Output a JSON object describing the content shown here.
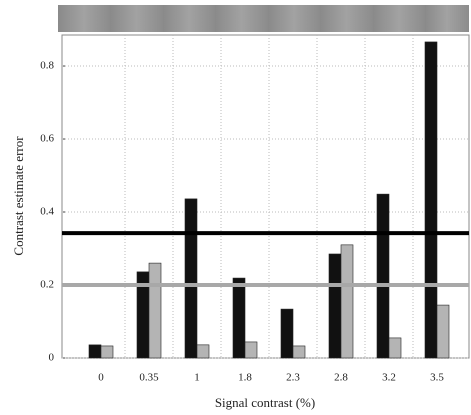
{
  "chart_data": {
    "type": "bar",
    "xlabel": "Signal contrast (%)",
    "ylabel": "Contrast estimate error",
    "categories": [
      "0",
      "0.35",
      "1",
      "1.8",
      "2.3",
      "2.8",
      "3.2",
      "3.5"
    ],
    "series": [
      {
        "color": "#111111",
        "values": [
          0.036,
          0.236,
          0.436,
          0.219,
          0.134,
          0.285,
          0.449,
          0.866
        ]
      },
      {
        "color": "#b4b4b4",
        "values": [
          0.033,
          0.26,
          0.036,
          0.044,
          0.033,
          0.31,
          0.055,
          0.145
        ]
      }
    ],
    "reference_lines": [
      {
        "value": 0.342,
        "color": "#000000"
      },
      {
        "value": 0.2,
        "color": "#a8a8a8"
      }
    ],
    "ylim": [
      0,
      0.885
    ],
    "yticks": [
      0,
      0.2,
      0.4,
      0.6,
      0.8
    ],
    "grid": true
  }
}
